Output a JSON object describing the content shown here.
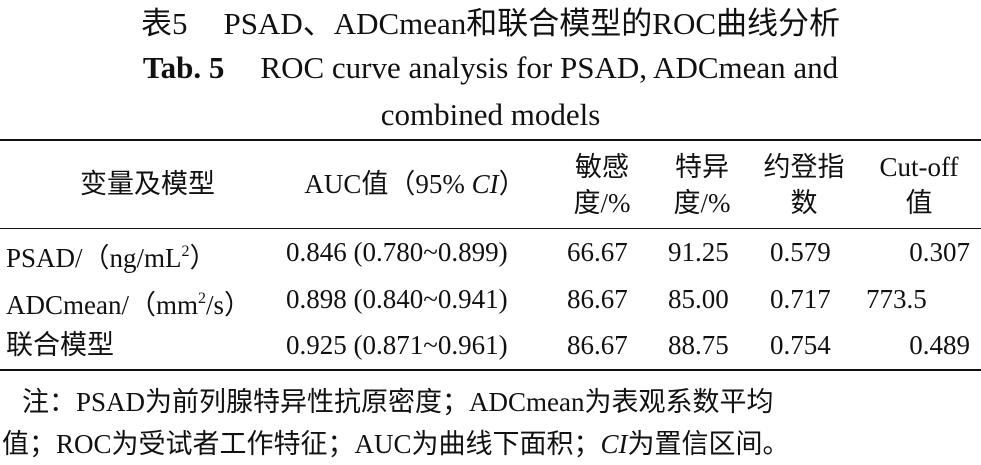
{
  "table": {
    "title_cn_prefix": "表5",
    "title_cn_text": "PSAD、ADCmean和联合模型的ROC曲线分析",
    "title_en_prefix": "Tab. 5",
    "title_en_line1": "ROC curve analysis for PSAD, ADCmean and",
    "title_en_line2": "combined models",
    "headers": {
      "col1": "变量及模型",
      "col2_prefix": "AUC值（95% ",
      "col2_ci": "CI",
      "col2_suffix": "）",
      "col3_line1": "敏感",
      "col3_line2": "度/%",
      "col4_line1": "特异",
      "col4_line2": "度/%",
      "col5_line1": "约登指",
      "col5_line2": "数",
      "col6_line1": "Cut-off",
      "col6_line2": "值"
    },
    "rows": [
      {
        "name_main": "PSAD/（ng/mL",
        "name_sup": "2",
        "name_end": "）",
        "auc": "0.846 (0.780~0.899)",
        "sensitivity": "66.67",
        "specificity": "91.25",
        "youden": "0.579",
        "cutoff": "0.307"
      },
      {
        "name_main": "ADCmean/（mm",
        "name_sup": "2",
        "name_end": "/s）",
        "auc": "0.898 (0.840~0.941)",
        "sensitivity": "86.67",
        "specificity": "85.00",
        "youden": "0.717",
        "cutoff": "773.5"
      },
      {
        "name_main": "联合模型",
        "name_sup": "",
        "name_end": "",
        "auc": "0.925 (0.871~0.961)",
        "sensitivity": "86.67",
        "specificity": "88.75",
        "youden": "0.754",
        "cutoff": "0.489"
      }
    ],
    "note_line1": "注：PSAD为前列腺特异性抗原密度；ADCmean为表观系数平均",
    "note_line2_prefix": "值；ROC为受试者工作特征；AUC为曲线下面积；",
    "note_line2_ci": "CI",
    "note_line2_suffix": "为置信区间。"
  }
}
